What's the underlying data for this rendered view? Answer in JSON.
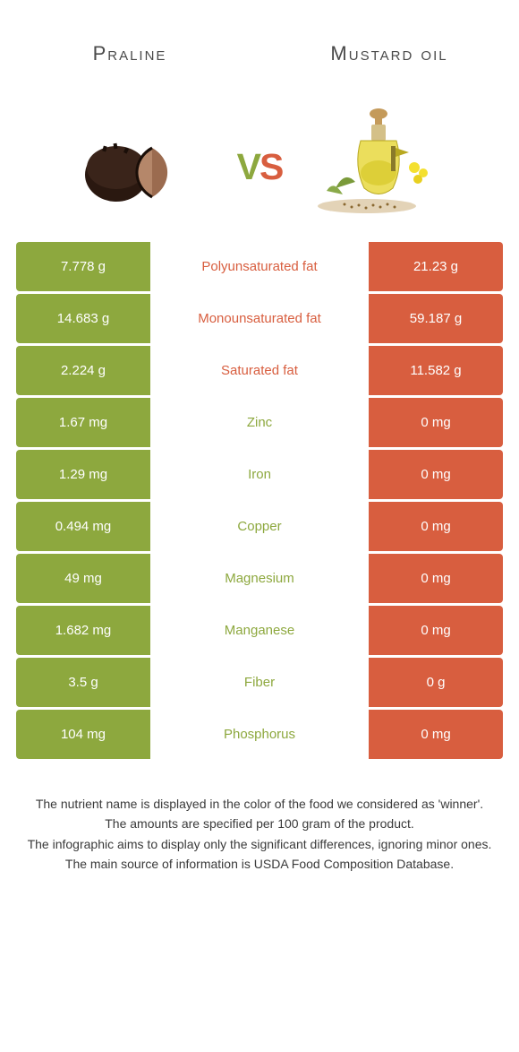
{
  "colors": {
    "green": "#8da83e",
    "orange": "#d85e3f",
    "mid_bg": "#ffffff",
    "text_dark": "#4a4a4a"
  },
  "header": {
    "left_title": "Praline",
    "right_title": "Mustard oil",
    "vs_v": "v",
    "vs_s": "s"
  },
  "rows": [
    {
      "left": "7.778 g",
      "mid": "Polyunsaturated fat",
      "right": "21.23 g",
      "left_bg": "#8da83e",
      "right_bg": "#d85e3f",
      "mid_color": "#d85e3f"
    },
    {
      "left": "14.683 g",
      "mid": "Monounsaturated fat",
      "right": "59.187 g",
      "left_bg": "#8da83e",
      "right_bg": "#d85e3f",
      "mid_color": "#d85e3f"
    },
    {
      "left": "2.224 g",
      "mid": "Saturated fat",
      "right": "11.582 g",
      "left_bg": "#8da83e",
      "right_bg": "#d85e3f",
      "mid_color": "#d85e3f"
    },
    {
      "left": "1.67 mg",
      "mid": "Zinc",
      "right": "0 mg",
      "left_bg": "#8da83e",
      "right_bg": "#d85e3f",
      "mid_color": "#8da83e"
    },
    {
      "left": "1.29 mg",
      "mid": "Iron",
      "right": "0 mg",
      "left_bg": "#8da83e",
      "right_bg": "#d85e3f",
      "mid_color": "#8da83e"
    },
    {
      "left": "0.494 mg",
      "mid": "Copper",
      "right": "0 mg",
      "left_bg": "#8da83e",
      "right_bg": "#d85e3f",
      "mid_color": "#8da83e"
    },
    {
      "left": "49 mg",
      "mid": "Magnesium",
      "right": "0 mg",
      "left_bg": "#8da83e",
      "right_bg": "#d85e3f",
      "mid_color": "#8da83e"
    },
    {
      "left": "1.682 mg",
      "mid": "Manganese",
      "right": "0 mg",
      "left_bg": "#8da83e",
      "right_bg": "#d85e3f",
      "mid_color": "#8da83e"
    },
    {
      "left": "3.5 g",
      "mid": "Fiber",
      "right": "0 g",
      "left_bg": "#8da83e",
      "right_bg": "#d85e3f",
      "mid_color": "#8da83e"
    },
    {
      "left": "104 mg",
      "mid": "Phosphorus",
      "right": "0 mg",
      "left_bg": "#8da83e",
      "right_bg": "#d85e3f",
      "mid_color": "#8da83e"
    }
  ],
  "footer": {
    "line1": "The nutrient name is displayed in the color of the food we considered as 'winner'.",
    "line2": "The amounts are specified per 100 gram of the product.",
    "line3": "The infographic aims to display only the significant differences, ignoring minor ones.",
    "line4": "The main source of information is USDA Food Composition Database."
  }
}
